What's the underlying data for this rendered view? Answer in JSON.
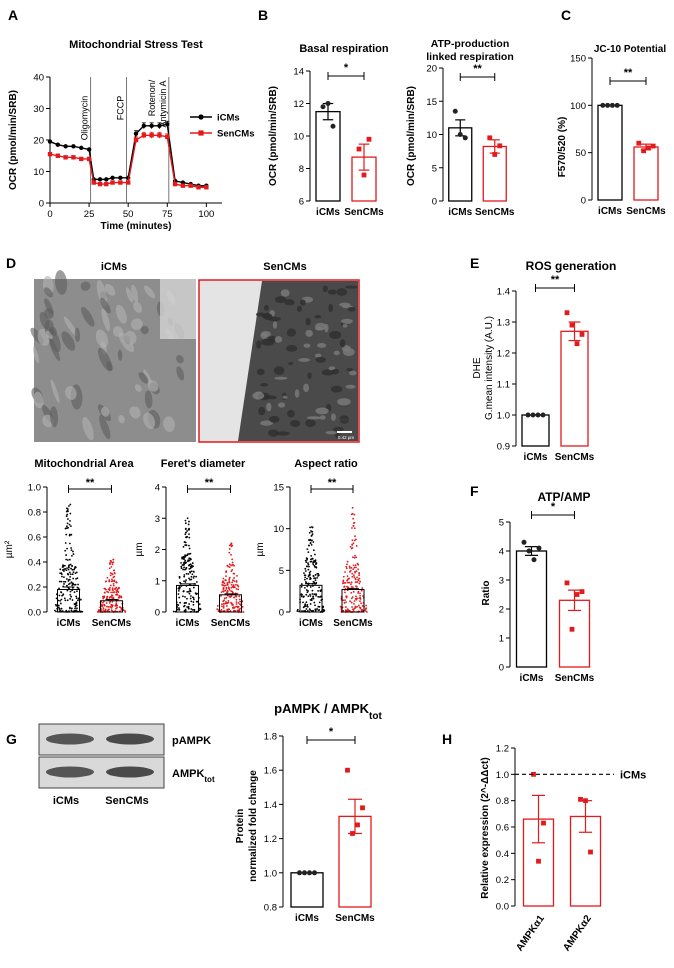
{
  "chart_data": [
    {
      "id": "A",
      "panel_letter": "A",
      "type": "line",
      "title": "Mitochondrial Stress Test",
      "xlabel": "Time (minutes)",
      "ylabel": "OCR (pmol/min/SRB)",
      "xlim": [
        0,
        110
      ],
      "ylim": [
        0,
        40
      ],
      "xticks": [
        "0",
        "25",
        "50",
        "75",
        "100"
      ],
      "yticks": [
        "0",
        "10",
        "20",
        "30",
        "40"
      ],
      "annotations": [
        "Oligomycin",
        "FCCP",
        "Rotenon/",
        "Antymicin A"
      ],
      "series": [
        {
          "name": "iCMs",
          "color": "#000000",
          "x": [
            0,
            5,
            10,
            15,
            20,
            25,
            28,
            32,
            36,
            40,
            45,
            50,
            55,
            60,
            65,
            70,
            75,
            80,
            85,
            90,
            95,
            100
          ],
          "y": [
            19.5,
            18.5,
            18,
            18,
            17.5,
            17,
            7.5,
            7.5,
            7.5,
            8,
            8,
            8,
            22,
            24.5,
            24.5,
            24.5,
            25,
            7,
            6.5,
            6,
            5.5,
            5.5
          ]
        },
        {
          "name": "SenCMs",
          "color": "#e31a1c",
          "x": [
            0,
            5,
            10,
            15,
            20,
            25,
            28,
            32,
            36,
            40,
            45,
            50,
            55,
            60,
            65,
            70,
            75,
            80,
            85,
            90,
            95,
            100
          ],
          "y": [
            15.5,
            15,
            14.5,
            14.5,
            14,
            14,
            6.5,
            6,
            6,
            6.5,
            6.5,
            6.5,
            20,
            21.5,
            21.5,
            21.5,
            21,
            6,
            5.5,
            5.5,
            5,
            5
          ]
        }
      ]
    },
    {
      "id": "B1",
      "panel_letter": "B",
      "type": "bar",
      "title": "Basal respiration",
      "ylabel": "OCR (pmol/min/SRB)",
      "ylim": [
        6,
        14
      ],
      "yticks": [
        "6",
        "8",
        "10",
        "12",
        "14"
      ],
      "categories": [
        "iCMs",
        "SenCMs"
      ],
      "values": [
        11.5,
        8.7
      ],
      "sem": [
        0.5,
        0.8
      ],
      "points": [
        [
          11.8,
          12.0,
          10.6
        ],
        [
          9.2,
          7.6,
          9.8
        ]
      ],
      "significance": "*"
    },
    {
      "id": "B2",
      "type": "bar",
      "title_lines": [
        "ATP-production",
        "linked respiration"
      ],
      "ylabel": "OCR (pmol/min/SRB)",
      "ylim": [
        0,
        20
      ],
      "yticks": [
        "0",
        "5",
        "10",
        "15",
        "20"
      ],
      "categories": [
        "iCMs",
        "SenCMs"
      ],
      "values": [
        11,
        8.2
      ],
      "sem": [
        1.2,
        1.0
      ],
      "points": [
        [
          13.5,
          10.0,
          9.5
        ],
        [
          9.5,
          7.0,
          8.3
        ]
      ],
      "significance": "**"
    },
    {
      "id": "C",
      "panel_letter": "C",
      "type": "bar",
      "title": "JC-10 Potential",
      "ylabel": "F570/520 (%)",
      "ylim": [
        0,
        150
      ],
      "yticks": [
        "0",
        "50",
        "100",
        "150"
      ],
      "categories": [
        "iCMs",
        "SenCMs"
      ],
      "values": [
        100,
        56
      ],
      "sem": [
        0,
        3
      ],
      "points": [
        [
          100,
          100,
          100,
          100
        ],
        [
          60,
          52,
          55,
          57
        ]
      ],
      "significance": "**"
    },
    {
      "id": "D1",
      "type": "scatter",
      "title": "Mitochondrial Area",
      "ylabel": "µm²",
      "ylim": [
        0,
        1.0
      ],
      "yticks": [
        "0.0",
        "0.2",
        "0.4",
        "0.6",
        "0.8",
        "1.0"
      ],
      "categories": [
        "iCMs",
        "SenCMs"
      ],
      "values": [
        0.18,
        0.09
      ],
      "sem": [
        0.02,
        0.01
      ],
      "spread_max": [
        0.86,
        0.42
      ],
      "spread_dense": [
        0.4,
        0.2
      ],
      "significance": "**"
    },
    {
      "id": "D2",
      "type": "scatter",
      "title": "Feret's diameter",
      "ylabel": "µm",
      "ylim": [
        0,
        4
      ],
      "yticks": [
        "0",
        "1",
        "2",
        "3",
        "4"
      ],
      "categories": [
        "iCMs",
        "SenCMs"
      ],
      "values": [
        0.85,
        0.55
      ],
      "sem": [
        0.05,
        0.03
      ],
      "spread_max": [
        3.0,
        2.2
      ],
      "spread_dense": [
        1.8,
        1.1
      ],
      "significance": "**"
    },
    {
      "id": "D3",
      "type": "scatter",
      "title": "Aspect ratio",
      "ylabel": "µm",
      "ylim": [
        0,
        15
      ],
      "yticks": [
        "0",
        "5",
        "10",
        "15"
      ],
      "categories": [
        "iCMs",
        "SenCMs"
      ],
      "values": [
        3.2,
        2.7
      ],
      "sem": [
        0.2,
        0.1
      ],
      "spread_max": [
        10.2,
        12.5
      ],
      "spread_dense": [
        6.5,
        5.5
      ],
      "significance": "**"
    },
    {
      "id": "E",
      "panel_letter": "E",
      "type": "bar",
      "title": "ROS generation",
      "ylabel_lines": [
        "DHE",
        "G.mean intensity (A.U.)"
      ],
      "ylim": [
        0.9,
        1.4
      ],
      "yticks": [
        "0.9",
        "1.0",
        "1.1",
        "1.2",
        "1.3",
        "1.4"
      ],
      "categories": [
        "iCMs",
        "SenCMs"
      ],
      "values": [
        1.0,
        1.27
      ],
      "sem": [
        0,
        0.03
      ],
      "points": [
        [
          1.0,
          1.0,
          1.0,
          1.0
        ],
        [
          1.33,
          1.29,
          1.23,
          1.26
        ]
      ],
      "significance": "**"
    },
    {
      "id": "F",
      "panel_letter": "F",
      "type": "bar",
      "title": "ATP/AMP",
      "ylabel": "Ratio",
      "ylim": [
        0,
        5
      ],
      "yticks": [
        "0",
        "1",
        "2",
        "3",
        "4",
        "5"
      ],
      "categories": [
        "iCMs",
        "SenCMs"
      ],
      "values": [
        4.0,
        2.3
      ],
      "sem": [
        0.15,
        0.35
      ],
      "points": [
        [
          4.3,
          4.0,
          3.7,
          4.1
        ],
        [
          2.9,
          1.3,
          2.5,
          2.6
        ]
      ],
      "significance": "*"
    },
    {
      "id": "G",
      "panel_letter": "G",
      "type": "bar",
      "title_main": "pAMPK / AMPK",
      "title_sub": "tot",
      "ylabel_lines": [
        "Protein",
        "normalized fold change"
      ],
      "ylim": [
        0.8,
        1.8
      ],
      "yticks": [
        "0.8",
        "1.0",
        "1.2",
        "1.4",
        "1.6",
        "1.8"
      ],
      "categories": [
        "iCMs",
        "SenCMs"
      ],
      "values": [
        1.0,
        1.33
      ],
      "sem": [
        0,
        0.1
      ],
      "points": [
        [
          1.0,
          1.0,
          1.0,
          1.0
        ],
        [
          1.6,
          1.23,
          1.28,
          1.38
        ]
      ],
      "significance": "*"
    },
    {
      "id": "H",
      "panel_letter": "H",
      "type": "bar",
      "ylabel": "Relative expression (2^-ΔΔct)",
      "ylim": [
        0,
        1.2
      ],
      "yticks": [
        "0.0",
        "0.2",
        "0.4",
        "0.6",
        "0.8",
        "1.0",
        "1.2"
      ],
      "categories": [
        "AMPKα1",
        "AMPKα2"
      ],
      "values": [
        0.66,
        0.68
      ],
      "sem": [
        0.18,
        0.12
      ],
      "points": [
        [
          1.0,
          0.34,
          0.63
        ],
        [
          0.81,
          0.8,
          0.41
        ]
      ],
      "reference": {
        "value": 1.0,
        "label": "iCMs"
      }
    }
  ],
  "micrographs": {
    "panel_letter": "D",
    "labels": [
      "iCMs",
      "SenCMs"
    ],
    "scale_bar": "0.42 µm"
  },
  "western_blot": {
    "rows": [
      {
        "main": "pAMPK",
        "sub": ""
      },
      {
        "main": "AMPK",
        "sub": "tot"
      }
    ],
    "lanes": [
      "iCMs",
      "SenCMs"
    ]
  },
  "colors": {
    "icms": "#000000",
    "sencms": "#e31a1c",
    "icms_point": "#222222"
  }
}
